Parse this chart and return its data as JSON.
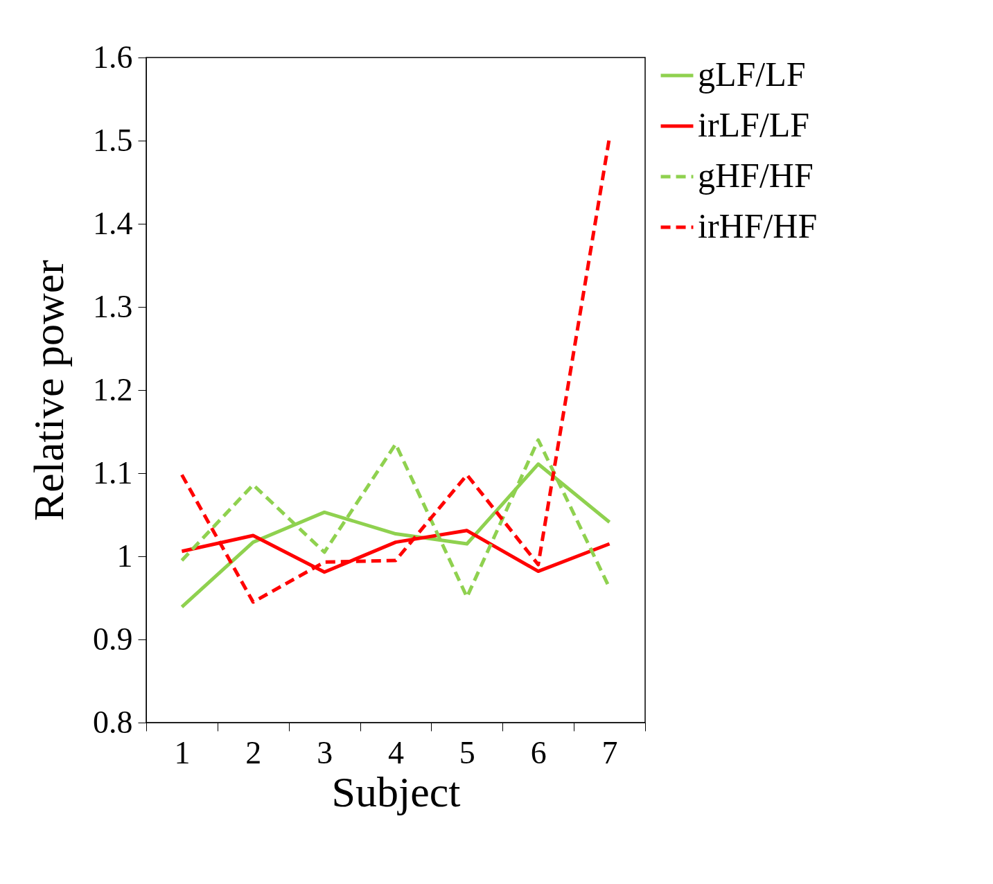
{
  "chart_data": {
    "type": "line",
    "xlabel": "Subject",
    "ylabel": "Relative power",
    "categories": [
      "1",
      "2",
      "3",
      "4",
      "5",
      "6",
      "7"
    ],
    "series": [
      {
        "name": "gLF/LF",
        "color": "#8fd14f",
        "line_style": "solid",
        "values": [
          0.939,
          1.017,
          1.053,
          1.027,
          1.015,
          1.111,
          1.041
        ]
      },
      {
        "name": "irLF/LF",
        "color": "#ff0000",
        "line_style": "solid",
        "values": [
          1.006,
          1.025,
          0.981,
          1.017,
          1.031,
          0.982,
          1.015
        ]
      },
      {
        "name": "gHF/HF",
        "color": "#8fd14f",
        "line_style": "dashed",
        "values": [
          0.995,
          1.086,
          1.005,
          1.135,
          0.951,
          1.14,
          0.962
        ]
      },
      {
        "name": "irHF/HF",
        "color": "#ff0000",
        "line_style": "dashed",
        "values": [
          1.098,
          0.945,
          0.993,
          0.995,
          1.098,
          0.99,
          1.504
        ]
      }
    ],
    "ylim": [
      0.8,
      1.6
    ],
    "yticks": [
      0.8,
      0.9,
      1,
      1.1,
      1.2,
      1.3,
      1.4,
      1.5,
      1.6
    ],
    "grid": false,
    "legend": "right",
    "marker": "none"
  }
}
